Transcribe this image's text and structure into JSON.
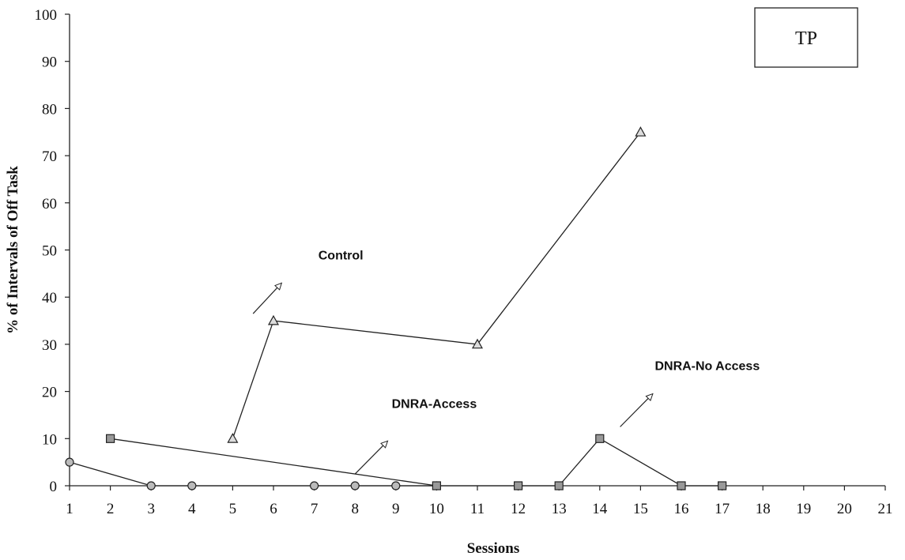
{
  "chart_data": {
    "type": "line",
    "xlabel": "Sessions",
    "ylabel": "% of Intervals of Off Task",
    "xlim": [
      1,
      21
    ],
    "ylim": [
      0,
      100
    ],
    "x_ticks": [
      1,
      2,
      3,
      4,
      5,
      6,
      7,
      8,
      9,
      10,
      11,
      12,
      13,
      14,
      15,
      16,
      17,
      18,
      19,
      20,
      21
    ],
    "y_ticks": [
      0,
      10,
      20,
      30,
      40,
      50,
      60,
      70,
      80,
      90,
      100
    ],
    "grid": false,
    "series": [
      {
        "name": "Control",
        "marker": "triangle",
        "x": [
          5,
          6,
          11,
          15
        ],
        "y": [
          10,
          35,
          30,
          75
        ]
      },
      {
        "name": "DNRA-Access",
        "marker": "circle",
        "x": [
          1,
          3,
          4,
          7,
          8,
          9,
          10
        ],
        "y": [
          5,
          0,
          0,
          0,
          0,
          0,
          0
        ]
      },
      {
        "name": "DNRA-No Access",
        "marker": "square",
        "x": [
          2,
          10,
          12,
          13,
          14,
          16,
          17
        ],
        "y": [
          10,
          0,
          0,
          0,
          10,
          0,
          0
        ]
      }
    ],
    "annotations": [
      {
        "text": "Control",
        "series": "Control"
      },
      {
        "text": "DNRA-Access",
        "series": "DNRA-Access"
      },
      {
        "text": "DNRA-No Access",
        "series": "DNRA-No Access"
      }
    ],
    "badge": "TP"
  }
}
